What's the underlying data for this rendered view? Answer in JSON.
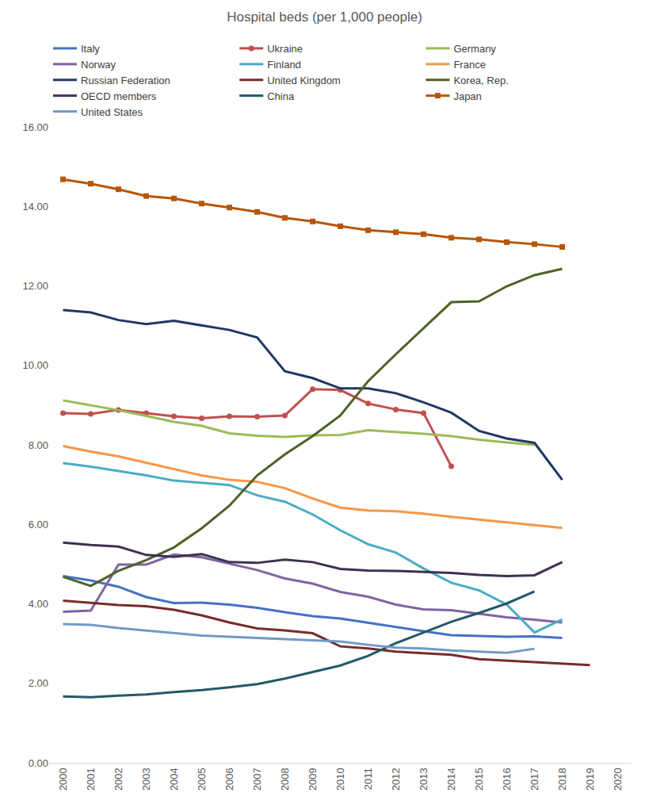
{
  "chart_data": {
    "type": "line",
    "title": "Hospital beds (per 1,000 people)",
    "categories": [
      "2000",
      "2001",
      "2002",
      "2003",
      "2004",
      "2005",
      "2006",
      "2007",
      "2008",
      "2009",
      "2010",
      "2011",
      "2012",
      "2013",
      "2014",
      "2015",
      "2016",
      "2017",
      "2018",
      "2019",
      "2020"
    ],
    "ylim": [
      0,
      16
    ],
    "yticks": [
      {
        "value": 0,
        "label": "0.00"
      },
      {
        "value": 2,
        "label": "2.00"
      },
      {
        "value": 4,
        "label": "4.00"
      },
      {
        "value": 6,
        "label": "6.00"
      },
      {
        "value": 8,
        "label": "8.00"
      },
      {
        "value": 10,
        "label": "10.00"
      },
      {
        "value": 12,
        "label": "12.00"
      },
      {
        "value": 14,
        "label": "14.00"
      },
      {
        "value": 16,
        "label": "16.00"
      }
    ],
    "grid": false,
    "legend": "top",
    "series": [
      {
        "name": "Italy",
        "color": "#4472c4",
        "values": [
          4.7,
          4.59,
          4.43,
          4.17,
          4.02,
          4.03,
          3.98,
          3.9,
          3.79,
          3.69,
          3.63,
          3.52,
          3.42,
          3.31,
          3.21,
          3.19,
          3.17,
          3.18,
          3.14,
          null,
          null
        ]
      },
      {
        "name": "Ukraine",
        "color": "#c0504d",
        "marker": "circle",
        "values": [
          8.8,
          8.78,
          8.88,
          8.8,
          8.72,
          8.67,
          8.72,
          8.71,
          8.74,
          9.4,
          9.38,
          9.04,
          8.89,
          8.8,
          7.46,
          null,
          null,
          null,
          null,
          null,
          null
        ]
      },
      {
        "name": "Germany",
        "color": "#9bbb59",
        "values": [
          9.12,
          9.0,
          8.87,
          8.73,
          8.58,
          8.48,
          8.29,
          8.23,
          8.2,
          8.24,
          8.25,
          8.37,
          8.33,
          8.28,
          8.22,
          8.13,
          8.06,
          8.0,
          null,
          null,
          null
        ]
      },
      {
        "name": "Norway",
        "color": "#8064a2",
        "values": [
          3.8,
          3.83,
          4.99,
          4.99,
          5.24,
          5.17,
          5.01,
          4.85,
          4.64,
          4.51,
          4.3,
          4.18,
          3.98,
          3.86,
          3.84,
          3.75,
          3.66,
          3.6,
          3.53,
          null,
          null
        ]
      },
      {
        "name": "Finland",
        "color": "#4bacc6",
        "values": [
          7.54,
          7.45,
          7.34,
          7.23,
          7.1,
          7.05,
          6.99,
          6.73,
          6.57,
          6.25,
          5.85,
          5.5,
          5.29,
          4.89,
          4.53,
          4.34,
          3.98,
          3.28,
          3.61,
          null,
          null
        ]
      },
      {
        "name": "France",
        "color": "#f79646",
        "values": [
          7.97,
          7.83,
          7.71,
          7.55,
          7.39,
          7.23,
          7.12,
          7.07,
          6.91,
          6.65,
          6.42,
          6.35,
          6.33,
          6.27,
          6.19,
          6.12,
          6.05,
          5.98,
          5.91,
          null,
          null
        ]
      },
      {
        "name": "Russian Federation",
        "color": "#1f3864",
        "values": [
          11.39,
          11.33,
          11.14,
          11.04,
          11.12,
          11.0,
          10.89,
          10.7,
          9.85,
          9.68,
          9.42,
          9.42,
          9.3,
          9.07,
          8.81,
          8.35,
          8.16,
          8.05,
          7.12,
          null,
          null
        ]
      },
      {
        "name": "United Kingdom",
        "color": "#772c2a",
        "values": [
          4.08,
          4.02,
          3.97,
          3.94,
          3.85,
          3.71,
          3.53,
          3.38,
          3.33,
          3.26,
          2.93,
          2.88,
          2.8,
          2.76,
          2.72,
          2.61,
          2.57,
          2.54,
          2.5,
          2.46,
          null
        ]
      },
      {
        "name": "Korea, Rep.",
        "color": "#4f6228",
        "values": [
          4.68,
          4.45,
          4.83,
          5.1,
          5.42,
          5.9,
          6.47,
          7.23,
          7.76,
          8.22,
          8.74,
          9.6,
          10.28,
          10.93,
          11.59,
          11.61,
          11.99,
          12.27,
          12.43,
          null,
          null
        ]
      },
      {
        "name": "OECD members",
        "color": "#3f3151",
        "values": [
          5.54,
          5.48,
          5.44,
          5.23,
          5.18,
          5.25,
          5.05,
          5.03,
          5.11,
          5.05,
          4.88,
          4.84,
          4.83,
          4.8,
          4.78,
          4.73,
          4.7,
          4.72,
          5.05,
          null,
          null
        ]
      },
      {
        "name": "China",
        "color": "#215968",
        "values": [
          1.67,
          1.65,
          1.69,
          1.72,
          1.78,
          1.83,
          1.9,
          1.98,
          2.12,
          2.28,
          2.45,
          2.69,
          3.01,
          3.28,
          3.55,
          3.77,
          4.01,
          4.31,
          null,
          null,
          null
        ]
      },
      {
        "name": "Japan",
        "color": "#b65708",
        "marker": "square",
        "values": [
          14.68,
          14.57,
          14.43,
          14.26,
          14.2,
          14.07,
          13.97,
          13.86,
          13.71,
          13.62,
          13.5,
          13.4,
          13.35,
          13.3,
          13.21,
          13.17,
          13.1,
          13.05,
          12.98,
          null,
          null
        ]
      },
      {
        "name": "United States",
        "color": "#729aca",
        "values": [
          3.49,
          3.47,
          3.39,
          3.33,
          3.26,
          3.2,
          3.17,
          3.14,
          3.12,
          3.08,
          3.05,
          2.97,
          2.9,
          2.88,
          2.83,
          2.8,
          2.77,
          2.87,
          null,
          null,
          null
        ]
      }
    ]
  }
}
